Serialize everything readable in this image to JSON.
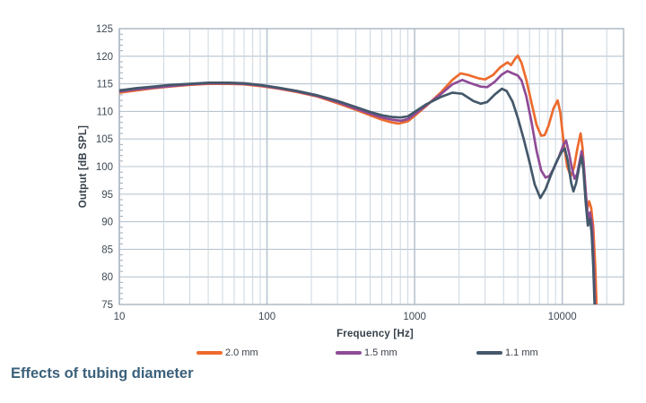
{
  "title": "Effects of tubing diameter",
  "axes": {
    "x_title": "Frequency [Hz]",
    "y_title": "Output [dB SPL]"
  },
  "legend": {
    "items": [
      {
        "label": "2.0 mm"
      },
      {
        "label": "1.5 mm"
      },
      {
        "label": "1.1 mm"
      }
    ]
  },
  "colors": {
    "series_orange": "#ed6b2d",
    "series_purple": "#8f4b97",
    "series_slate": "#44586a",
    "grid_minor": "#ccd6df",
    "grid_major": "#b9c5d1",
    "frame": "#aebac6",
    "tick_text": "#3d4954",
    "title_text": "#3b617b"
  },
  "chart_data": {
    "type": "line",
    "title": "Effects of tubing diameter",
    "xlabel": "Frequency [Hz]",
    "ylabel": "Output [dB SPL]",
    "x_scale": "log",
    "x_range": [
      10,
      26000
    ],
    "y_range": [
      75,
      125
    ],
    "x_tick_values": [
      10,
      100,
      1000,
      10000
    ],
    "x_tick_labels": [
      "10",
      "100",
      "1000",
      "10000"
    ],
    "y_ticks": [
      75,
      80,
      85,
      90,
      95,
      100,
      105,
      110,
      115,
      120,
      125
    ],
    "y_minor_tick_step": 1,
    "grid": true,
    "legend_position": "bottom",
    "series": [
      {
        "name": "2.0 mm",
        "color": "#ed6b2d",
        "points": [
          [
            10,
            113.4
          ],
          [
            13,
            113.8
          ],
          [
            17,
            114.2
          ],
          [
            22,
            114.5
          ],
          [
            30,
            114.8
          ],
          [
            40,
            115.0
          ],
          [
            55,
            115.0
          ],
          [
            70,
            114.9
          ],
          [
            90,
            114.6
          ],
          [
            120,
            114.1
          ],
          [
            160,
            113.5
          ],
          [
            220,
            112.7
          ],
          [
            300,
            111.5
          ],
          [
            400,
            110.3
          ],
          [
            500,
            109.3
          ],
          [
            600,
            108.5
          ],
          [
            700,
            108.0
          ],
          [
            780,
            107.8
          ],
          [
            900,
            108.2
          ],
          [
            1000,
            109.2
          ],
          [
            1200,
            111.0
          ],
          [
            1500,
            113.4
          ],
          [
            1800,
            115.7
          ],
          [
            2050,
            116.9
          ],
          [
            2300,
            116.6
          ],
          [
            2700,
            116.0
          ],
          [
            3000,
            115.8
          ],
          [
            3400,
            116.6
          ],
          [
            3800,
            118.0
          ],
          [
            4250,
            118.9
          ],
          [
            4500,
            118.4
          ],
          [
            4800,
            119.6
          ],
          [
            5000,
            120.1
          ],
          [
            5300,
            118.8
          ],
          [
            5700,
            115.8
          ],
          [
            6200,
            111.5
          ],
          [
            6700,
            107.5
          ],
          [
            7200,
            105.6
          ],
          [
            7600,
            105.7
          ],
          [
            8100,
            107.5
          ],
          [
            8700,
            110.5
          ],
          [
            9300,
            112.0
          ],
          [
            9700,
            109.8
          ],
          [
            10200,
            104.5
          ],
          [
            10800,
            100.0
          ],
          [
            11400,
            98.3
          ],
          [
            12000,
            99.8
          ],
          [
            12700,
            103.5
          ],
          [
            13300,
            106.0
          ],
          [
            13700,
            103.5
          ],
          [
            14200,
            97.5
          ],
          [
            14700,
            92.2
          ],
          [
            15200,
            93.7
          ],
          [
            15700,
            92.5
          ],
          [
            16200,
            89.0
          ],
          [
            16700,
            82.0
          ],
          [
            17100,
            74.0
          ]
        ]
      },
      {
        "name": "1.5 mm",
        "color": "#8f4b97",
        "points": [
          [
            10,
            113.6
          ],
          [
            13,
            114.0
          ],
          [
            17,
            114.3
          ],
          [
            22,
            114.6
          ],
          [
            30,
            114.9
          ],
          [
            40,
            115.1
          ],
          [
            55,
            115.1
          ],
          [
            70,
            115.0
          ],
          [
            90,
            114.7
          ],
          [
            120,
            114.2
          ],
          [
            160,
            113.6
          ],
          [
            220,
            112.8
          ],
          [
            300,
            111.7
          ],
          [
            400,
            110.5
          ],
          [
            500,
            109.6
          ],
          [
            600,
            108.9
          ],
          [
            700,
            108.5
          ],
          [
            800,
            108.3
          ],
          [
            900,
            108.6
          ],
          [
            1000,
            109.5
          ],
          [
            1200,
            111.1
          ],
          [
            1500,
            113.1
          ],
          [
            1800,
            114.9
          ],
          [
            2100,
            115.7
          ],
          [
            2400,
            115.1
          ],
          [
            2800,
            114.5
          ],
          [
            3100,
            114.4
          ],
          [
            3500,
            115.4
          ],
          [
            3900,
            116.7
          ],
          [
            4250,
            117.3
          ],
          [
            4600,
            116.9
          ],
          [
            5000,
            116.5
          ],
          [
            5300,
            115.6
          ],
          [
            5700,
            112.8
          ],
          [
            6200,
            108.0
          ],
          [
            6700,
            102.8
          ],
          [
            7200,
            99.3
          ],
          [
            7700,
            98.0
          ],
          [
            8200,
            98.3
          ],
          [
            8800,
            99.8
          ],
          [
            9500,
            101.8
          ],
          [
            10200,
            104.0
          ],
          [
            10600,
            104.7
          ],
          [
            11100,
            102.5
          ],
          [
            11600,
            99.8
          ],
          [
            12100,
            97.8
          ],
          [
            12600,
            98.6
          ],
          [
            13100,
            100.9
          ],
          [
            13500,
            102.8
          ],
          [
            13900,
            101.0
          ],
          [
            14400,
            95.5
          ],
          [
            14900,
            90.5
          ],
          [
            15400,
            91.7
          ],
          [
            15900,
            89.5
          ],
          [
            16300,
            83.0
          ],
          [
            16700,
            74.0
          ]
        ]
      },
      {
        "name": "1.1 mm",
        "color": "#44586a",
        "points": [
          [
            10,
            113.8
          ],
          [
            13,
            114.2
          ],
          [
            17,
            114.5
          ],
          [
            22,
            114.8
          ],
          [
            30,
            115.0
          ],
          [
            40,
            115.2
          ],
          [
            55,
            115.2
          ],
          [
            70,
            115.1
          ],
          [
            90,
            114.8
          ],
          [
            120,
            114.3
          ],
          [
            160,
            113.7
          ],
          [
            220,
            112.9
          ],
          [
            300,
            111.9
          ],
          [
            400,
            110.8
          ],
          [
            500,
            109.9
          ],
          [
            600,
            109.3
          ],
          [
            700,
            109.0
          ],
          [
            800,
            108.9
          ],
          [
            900,
            109.1
          ],
          [
            1000,
            109.9
          ],
          [
            1200,
            111.3
          ],
          [
            1500,
            112.6
          ],
          [
            1800,
            113.4
          ],
          [
            2100,
            113.2
          ],
          [
            2500,
            111.9
          ],
          [
            2800,
            111.4
          ],
          [
            3100,
            111.7
          ],
          [
            3500,
            113.1
          ],
          [
            3900,
            114.1
          ],
          [
            4200,
            113.7
          ],
          [
            4600,
            111.8
          ],
          [
            5000,
            108.8
          ],
          [
            5500,
            104.8
          ],
          [
            6000,
            100.8
          ],
          [
            6500,
            96.8
          ],
          [
            7100,
            94.3
          ],
          [
            7700,
            95.9
          ],
          [
            8300,
            98.2
          ],
          [
            9000,
            100.5
          ],
          [
            9800,
            102.5
          ],
          [
            10400,
            103.3
          ],
          [
            10900,
            101.0
          ],
          [
            11500,
            97.0
          ],
          [
            11900,
            95.5
          ],
          [
            12400,
            97.0
          ],
          [
            13000,
            99.9
          ],
          [
            13500,
            101.8
          ],
          [
            13900,
            99.5
          ],
          [
            14400,
            93.5
          ],
          [
            14900,
            89.3
          ],
          [
            15400,
            90.5
          ],
          [
            15800,
            88.0
          ],
          [
            16200,
            82.0
          ],
          [
            16600,
            74.0
          ]
        ]
      }
    ]
  }
}
